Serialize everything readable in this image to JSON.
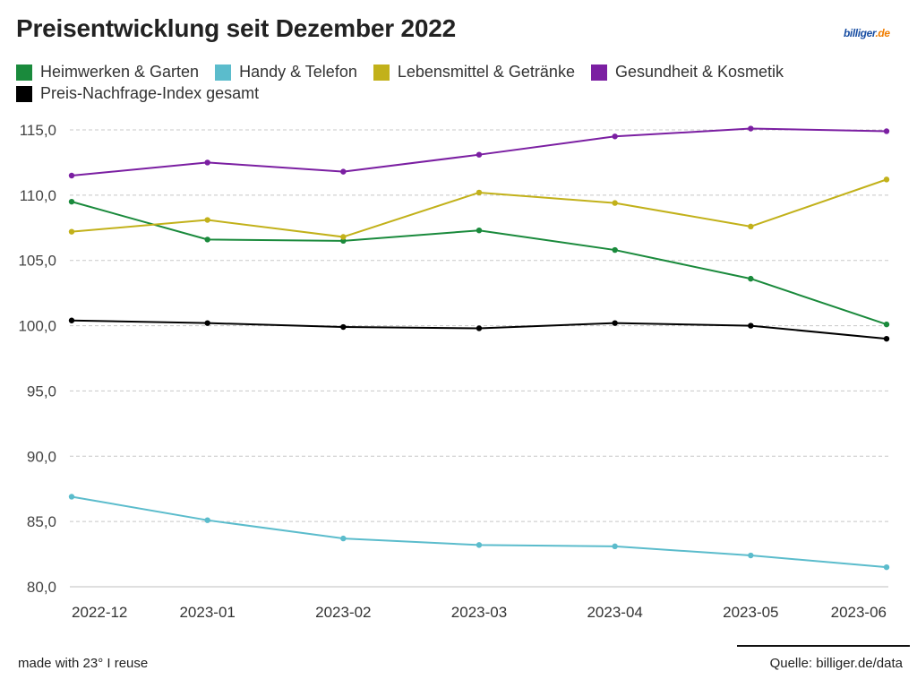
{
  "title": "Preisentwicklung seit Dezember 2022",
  "logo": {
    "part1": "billiger",
    "part2": ".de"
  },
  "footer": {
    "made_with": "made with 23° I reuse",
    "source": "Quelle: billiger.de/data"
  },
  "chart_data": {
    "type": "line",
    "title": "Preisentwicklung seit Dezember 2022",
    "xlabel": "",
    "ylabel": "",
    "categories": [
      "2022-12",
      "2023-01",
      "2023-02",
      "2023-03",
      "2023-04",
      "2023-05",
      "2023-06"
    ],
    "ylim": [
      80,
      115
    ],
    "yticks": [
      "80,0",
      "85,0",
      "90,0",
      "95,0",
      "100,0",
      "105,0",
      "110,0",
      "115,0"
    ],
    "grid": true,
    "legend_position": "top-left",
    "series": [
      {
        "name": "Heimwerken & Garten",
        "color": "#1a8a3c",
        "values": [
          109.5,
          106.6,
          106.5,
          107.3,
          105.8,
          103.6,
          100.1
        ]
      },
      {
        "name": "Handy & Telefon",
        "color": "#5bbccc",
        "values": [
          86.9,
          85.1,
          83.7,
          83.2,
          83.1,
          82.4,
          81.5
        ]
      },
      {
        "name": "Lebensmittel & Getränke",
        "color": "#c2b11a",
        "values": [
          107.2,
          108.1,
          106.8,
          110.2,
          109.4,
          107.6,
          111.2
        ]
      },
      {
        "name": "Gesundheit & Kosmetik",
        "color": "#7b1fa2",
        "values": [
          111.5,
          112.5,
          111.8,
          113.1,
          114.5,
          115.1,
          114.9
        ]
      },
      {
        "name": "Preis-Nachfrage-Index gesamt",
        "color": "#000000",
        "values": [
          100.4,
          100.2,
          99.9,
          99.8,
          100.2,
          100.0,
          99.0
        ]
      }
    ]
  }
}
